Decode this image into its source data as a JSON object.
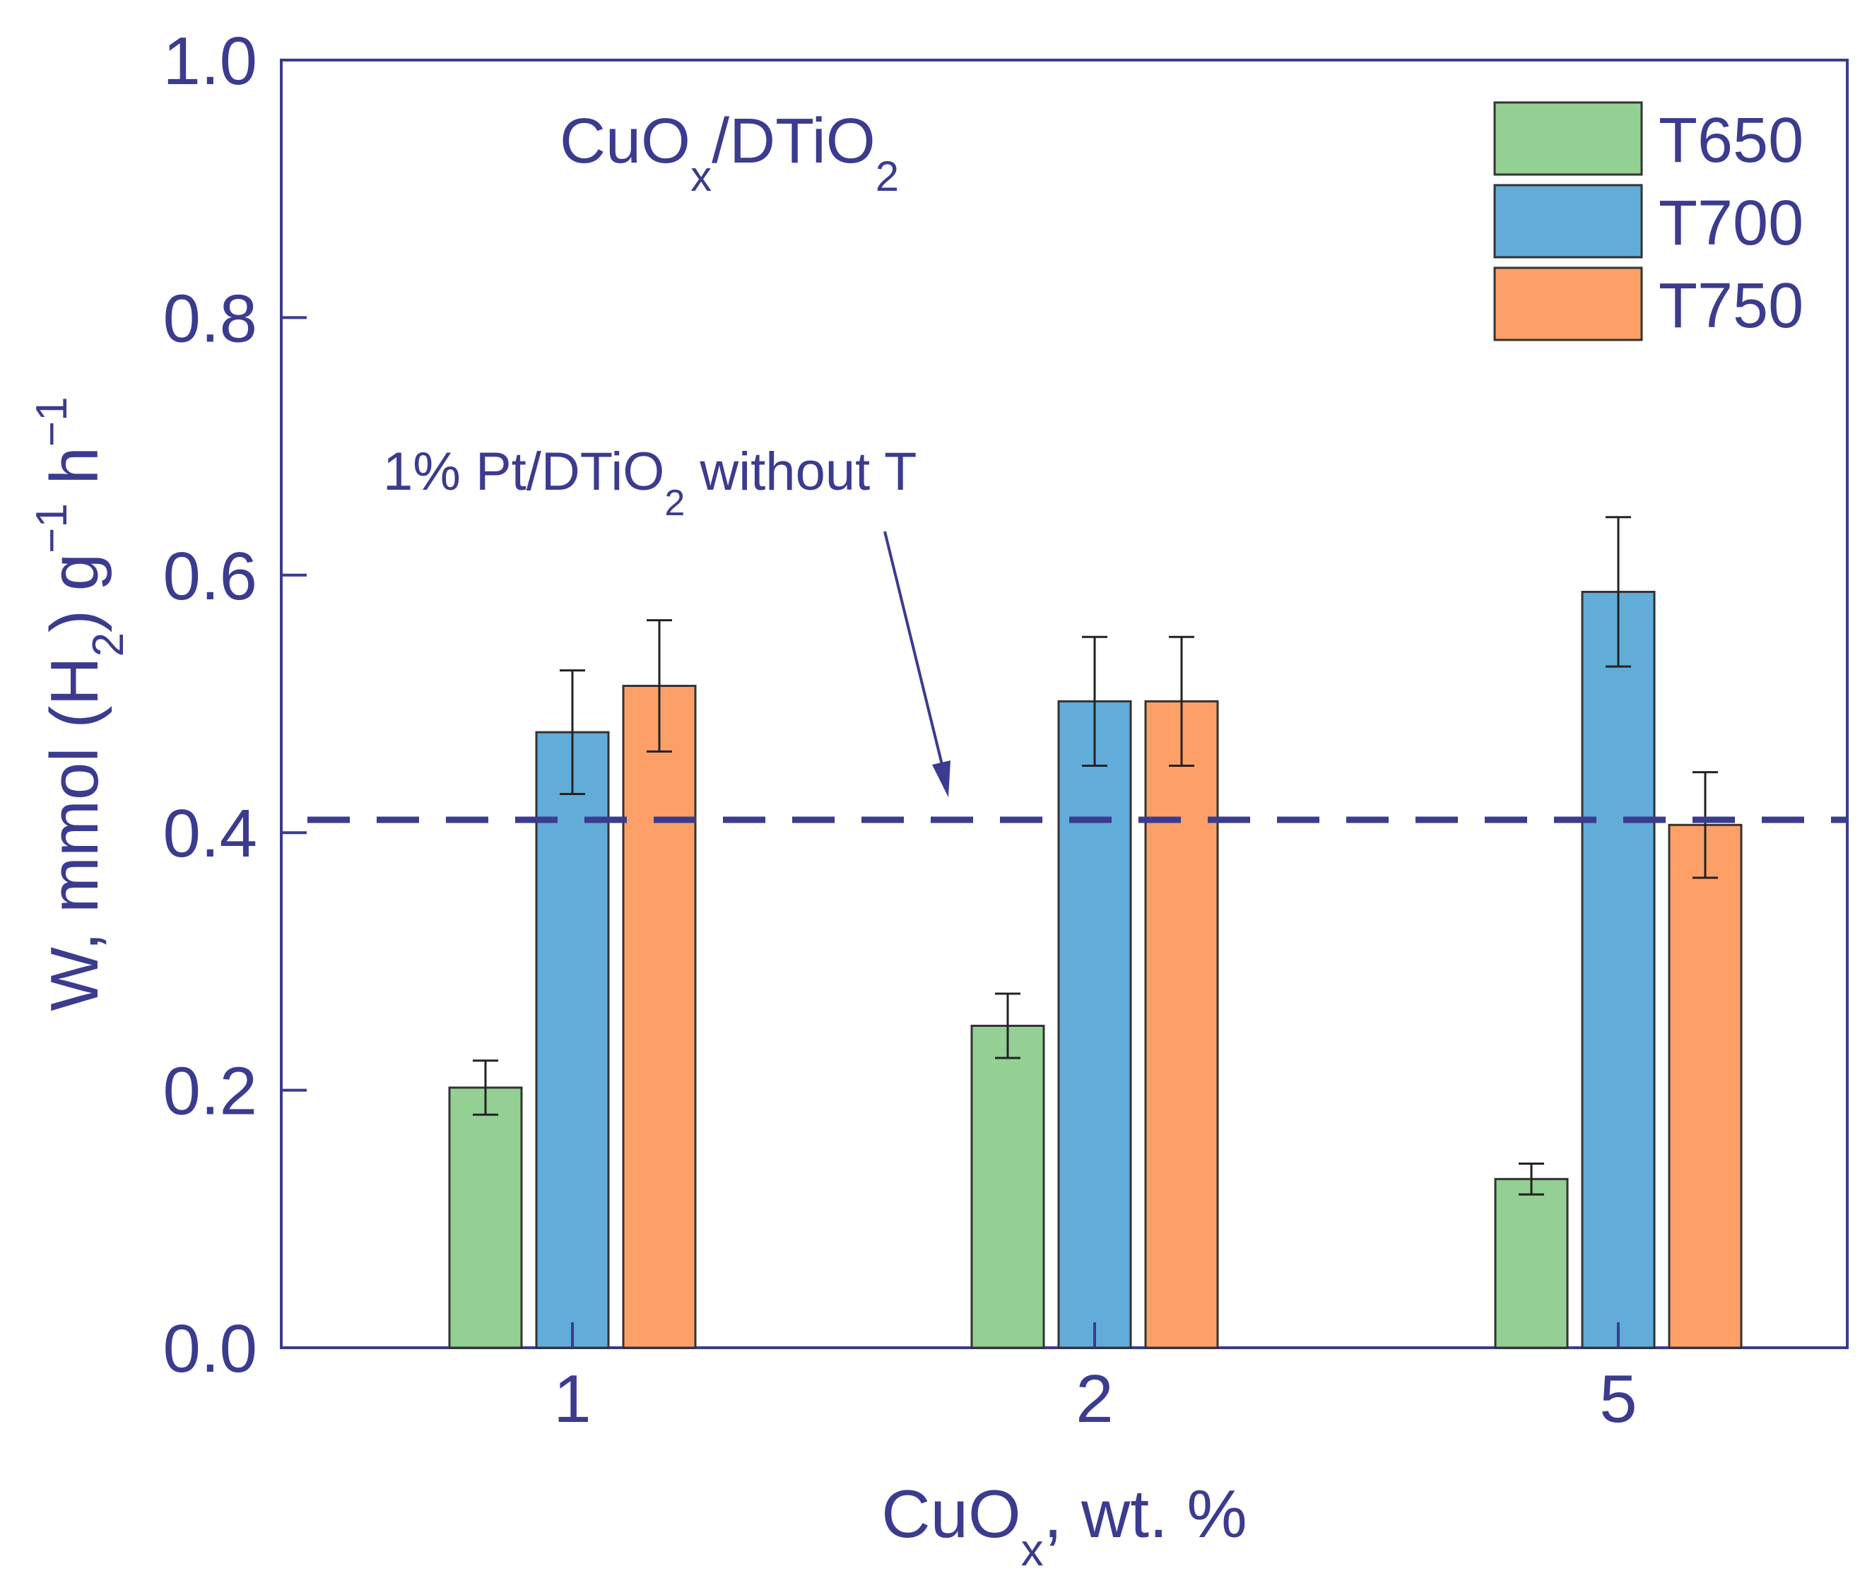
{
  "chart_data": {
    "type": "bar",
    "title": "",
    "inset_label": {
      "main": "CuO",
      "sub1": "x",
      "mid": "/DTiO",
      "sub2": "2"
    },
    "xlabel": {
      "main": "CuO",
      "sub": "x",
      "rest": ", wt. %"
    },
    "ylabel": {
      "a": "W, mmol (H",
      "b": "2",
      "c": ") g",
      "d": "−1",
      "e": " h",
      "f": "−1"
    },
    "categories": [
      "1",
      "2",
      "5"
    ],
    "ylim": [
      0,
      1.0
    ],
    "yticks": [
      "0.0",
      "0.2",
      "0.4",
      "0.6",
      "0.8",
      "1.0"
    ],
    "series": [
      {
        "name": "T650",
        "color": "#94d094",
        "values": [
          0.202,
          0.25,
          0.131
        ],
        "errors": [
          0.021,
          0.025,
          0.012
        ]
      },
      {
        "name": "T700",
        "color": "#62acd9",
        "values": [
          0.478,
          0.502,
          0.587
        ],
        "errors": [
          0.048,
          0.05,
          0.058
        ]
      },
      {
        "name": "T750",
        "color": "#fca068",
        "values": [
          0.514,
          0.502,
          0.406
        ],
        "errors": [
          0.051,
          0.05,
          0.041
        ]
      }
    ],
    "reference_line": {
      "value": 0.41,
      "label": {
        "a": "1% Pt/DTiO",
        "b": "2",
        "c": " without T"
      }
    },
    "colors": {
      "axis": "#3b3b8f",
      "bar_edge": "#333333",
      "error_bar": "#222222"
    },
    "legend": "top-right"
  }
}
